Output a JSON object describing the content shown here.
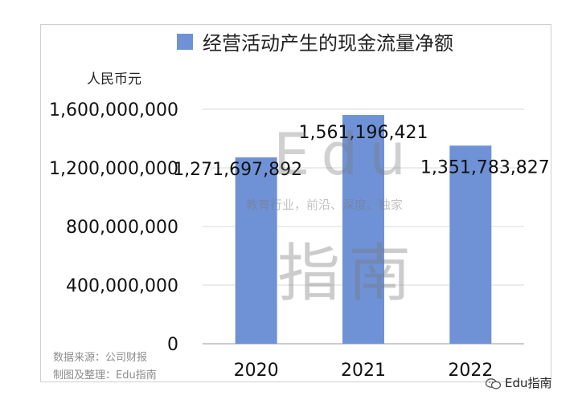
{
  "legend": {
    "label": "经营活动产生的现金流量净额",
    "color": "#6f92d6"
  },
  "unit_label": "人民币元",
  "footnotes": {
    "source": "数据来源：公司财报",
    "credit": "制图及整理：Edu指南"
  },
  "watermark": {
    "latin": "Edu",
    "slogan": "教育行业，前沿、深度、独家",
    "chinese": "指南"
  },
  "wechat": {
    "label": "Edu指南",
    "icon": "wechat-icon"
  },
  "chart_data": {
    "type": "bar",
    "categories": [
      "2020",
      "2021",
      "2022"
    ],
    "series": [
      {
        "name": "经营活动产生的现金流量净额",
        "values": [
          1271697892,
          1561196421,
          1351783827
        ]
      }
    ],
    "data_labels": [
      "1,271,697,892",
      "1,561,196,421",
      "1,351,783,827"
    ],
    "ylim": [
      0,
      1600000000
    ],
    "yticks": [
      0,
      400000000,
      800000000,
      1200000000,
      1600000000
    ],
    "ytick_labels": [
      "0",
      "400,000,000",
      "800,000,000",
      "1,200,000,000",
      "1,600,000,000"
    ],
    "grid": true,
    "legend_position": "top",
    "bar_color": "#6f92d6"
  }
}
